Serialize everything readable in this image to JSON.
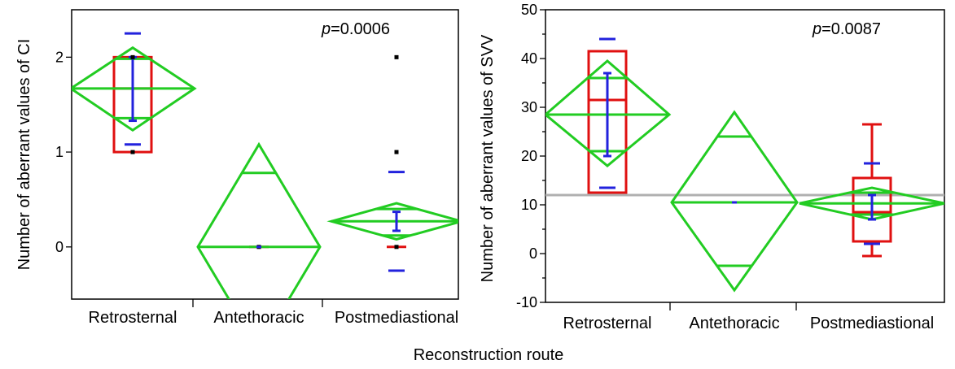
{
  "chart_data": [
    {
      "type": "box",
      "ylabel": "Number of aberrant values of CI",
      "categories": [
        "Retrosternal",
        "Antethoracic",
        "Postmediastional"
      ],
      "ylim": [
        -0.55,
        2.5
      ],
      "yticks": [
        0,
        1,
        2
      ],
      "annotation": {
        "p_label": "p",
        "p_value": "=0.0006"
      },
      "groups": [
        {
          "name": "Retrosternal",
          "mean": 1.67,
          "ci": [
            1.23,
            2.1
          ],
          "box": [
            1.0,
            2.0
          ],
          "median": 1.67,
          "whisker": [
            1.0,
            2.0
          ],
          "sd_range": [
            1.33,
            2.0
          ],
          "sd_caps": [
            1.08,
            2.25
          ],
          "points": [
            1,
            2
          ]
        },
        {
          "name": "Antethoracic",
          "mean": 0.0,
          "ci": [
            -0.78,
            0.78
          ],
          "diamond": [
            -1.08,
            1.08
          ],
          "median": 0.0,
          "points": [
            0
          ]
        },
        {
          "name": "Postmediastional",
          "mean": 0.27,
          "ci": [
            0.12,
            0.4
          ],
          "diamond": [
            0.08,
            0.46
          ],
          "median": 0.0,
          "sd_range": [
            0.17,
            0.37
          ],
          "sd_caps": [
            -0.25,
            0.79
          ],
          "points": [
            0,
            1,
            2
          ]
        }
      ]
    },
    {
      "type": "box",
      "ylabel": "Number of aberrant values of SVV",
      "categories": [
        "Retrosternal",
        "Antethoracic",
        "Postmediastional"
      ],
      "ylim": [
        -10,
        50
      ],
      "yticks": [
        -10,
        0,
        10,
        20,
        30,
        40,
        50
      ],
      "annotation": {
        "p_label": "p",
        "p_value": "=0.0087"
      },
      "reference_line": 12,
      "groups": [
        {
          "name": "Retrosternal",
          "mean": 28.5,
          "ci": [
            21.0,
            36.0
          ],
          "diamond": [
            18.0,
            39.5
          ],
          "box": [
            12.5,
            41.5
          ],
          "median": 31.5,
          "sd_range": [
            20.0,
            37.0
          ],
          "sd_caps": [
            13.5,
            44.0
          ]
        },
        {
          "name": "Antethoracic",
          "mean": 10.5,
          "ci": [
            -2.5,
            24.0
          ],
          "diamond": [
            -7.5,
            29.0
          ],
          "median": 10.5
        },
        {
          "name": "Postmediastional",
          "mean": 10.3,
          "ci": [
            8.0,
            12.5
          ],
          "diamond": [
            7.0,
            13.5
          ],
          "box": [
            2.5,
            15.5
          ],
          "median": 8.5,
          "whisker": [
            -0.5,
            26.5
          ],
          "sd_range": [
            7.0,
            12.0
          ],
          "sd_caps": [
            2.0,
            18.5
          ]
        }
      ]
    }
  ],
  "shared": {
    "xlabel": "Reconstruction route"
  },
  "colors": {
    "diamond": "#22cc22",
    "box": "#e01010",
    "sd": "#2222dd",
    "reference": "#b0b0b0"
  }
}
